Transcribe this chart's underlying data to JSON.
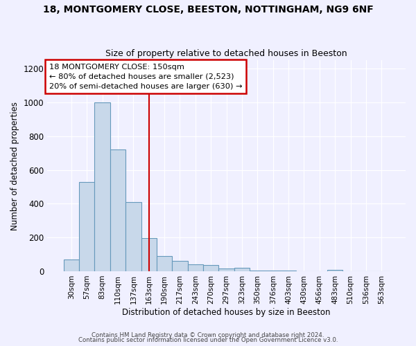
{
  "title1": "18, MONTGOMERY CLOSE, BEESTON, NOTTINGHAM, NG9 6NF",
  "title2": "Size of property relative to detached houses in Beeston",
  "xlabel": "Distribution of detached houses by size in Beeston",
  "ylabel": "Number of detached properties",
  "categories": [
    "30sqm",
    "57sqm",
    "83sqm",
    "110sqm",
    "137sqm",
    "163sqm",
    "190sqm",
    "217sqm",
    "243sqm",
    "270sqm",
    "297sqm",
    "323sqm",
    "350sqm",
    "376sqm",
    "403sqm",
    "430sqm",
    "456sqm",
    "483sqm",
    "510sqm",
    "536sqm",
    "563sqm"
  ],
  "values": [
    70,
    530,
    1000,
    720,
    410,
    195,
    90,
    60,
    40,
    35,
    15,
    20,
    5,
    3,
    2,
    1,
    0,
    10,
    1,
    0,
    0
  ],
  "bar_color": "#c8d8ea",
  "bar_edge_color": "#6699bb",
  "ylim": [
    0,
    1250
  ],
  "yticks": [
    0,
    200,
    400,
    600,
    800,
    1000,
    1200
  ],
  "vline_x": 5.0,
  "vline_color": "#cc0000",
  "annotation_text": "18 MONTGOMERY CLOSE: 150sqm\n← 80% of detached houses are smaller (2,523)\n20% of semi-detached houses are larger (630) →",
  "annotation_box_color": "#ffffff",
  "annotation_box_edge_color": "#cc0000",
  "footnote1": "Contains HM Land Registry data © Crown copyright and database right 2024.",
  "footnote2": "Contains public sector information licensed under the Open Government Licence v3.0.",
  "background_color": "#f0f0ff"
}
